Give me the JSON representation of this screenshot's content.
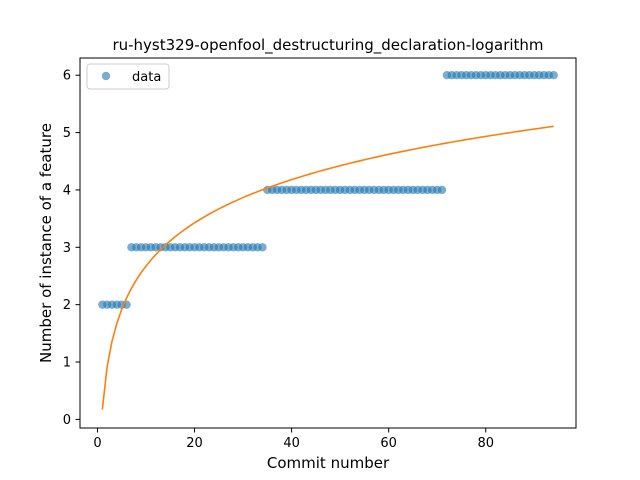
{
  "chart_data": {
    "type": "scatter",
    "title": "ru-hyst329-openfool_destructuring_declaration-logarithm",
    "xlabel": "Commit number",
    "ylabel": "Number of instance of a feature",
    "xlim": [
      -3.6,
      98.6
    ],
    "ylim": [
      -0.15,
      6.3
    ],
    "xticks": [
      0,
      20,
      40,
      60,
      80
    ],
    "yticks": [
      0,
      1,
      2,
      3,
      4,
      5,
      6
    ],
    "grid": false,
    "legend": {
      "placement": "top-left",
      "entries": [
        "data"
      ]
    },
    "colors": {
      "data": "#1f77b4",
      "fit": "#ff7f0e"
    },
    "series": [
      {
        "name": "data",
        "kind": "scatter",
        "segments": [
          {
            "x_from": 1,
            "x_to": 6,
            "y": 2
          },
          {
            "x_from": 7,
            "x_to": 34,
            "y": 3
          },
          {
            "x_from": 35,
            "x_to": 71,
            "y": 4
          },
          {
            "x_from": 72,
            "x_to": 94,
            "y": 6
          }
        ]
      },
      {
        "kind": "line",
        "model": "a + b*ln(x)",
        "a": 0.17,
        "b": 1.087,
        "x_range": [
          1,
          94
        ]
      }
    ]
  }
}
